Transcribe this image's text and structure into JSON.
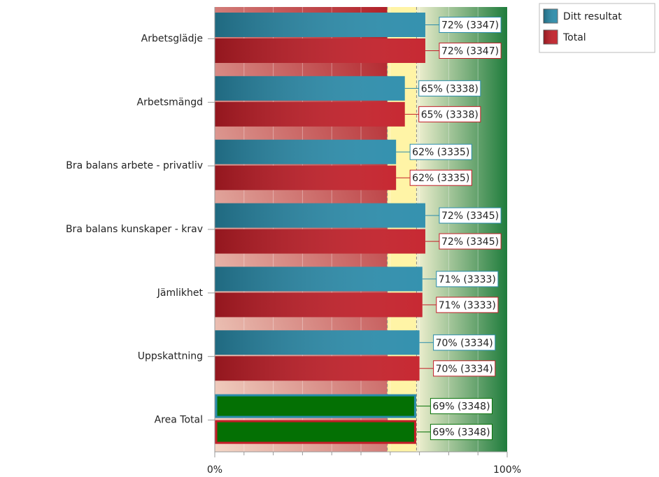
{
  "chart_data": {
    "type": "hbar",
    "categories": [
      "Arbetsglädje",
      "Arbetsmängd",
      "Bra balans arbete - privatliv",
      "Bra balans kunskaper - krav",
      "Jämlikhet",
      "Uppskattning",
      "Area Total"
    ],
    "series": [
      {
        "name": "Ditt resultat",
        "color": "#2a8cab",
        "colors": [
          "#2a8cab",
          "#2a8cab",
          "#2a8cab",
          "#2a8cab",
          "#2a8cab",
          "#2a8cab",
          "#047004"
        ],
        "values": [
          72,
          65,
          62,
          72,
          71,
          70,
          69
        ],
        "value_labels": [
          "72% (3347)",
          "65% (3338)",
          "62% (3335)",
          "72% (3345)",
          "71% (3333)",
          "70% (3334)",
          "69% (3348)"
        ]
      },
      {
        "name": "Total",
        "color": "#c41e28",
        "colors": [
          "#c41e28",
          "#c41e28",
          "#c41e28",
          "#c41e28",
          "#c41e28",
          "#c41e28",
          "#047004"
        ],
        "values": [
          72,
          65,
          62,
          72,
          71,
          70,
          69
        ],
        "value_labels": [
          "72% (3347)",
          "65% (3338)",
          "62% (3335)",
          "72% (3345)",
          "71% (3333)",
          "70% (3334)",
          "69% (3348)"
        ]
      }
    ],
    "xlim": [
      0,
      100
    ],
    "xticks": [
      {
        "value": 0,
        "label": "0%"
      },
      {
        "value": 100,
        "label": "100%"
      }
    ],
    "minor_xticks": [
      10,
      20,
      30,
      40,
      50,
      60,
      70,
      80,
      90
    ],
    "bands": [
      {
        "from": 0,
        "to": 59,
        "color": "#c03434"
      },
      {
        "from": 59,
        "to": 69,
        "color": "#fff4a6"
      },
      {
        "from": 69,
        "to": 100,
        "color": "#1f7c3c"
      }
    ],
    "legend": "top-right"
  }
}
